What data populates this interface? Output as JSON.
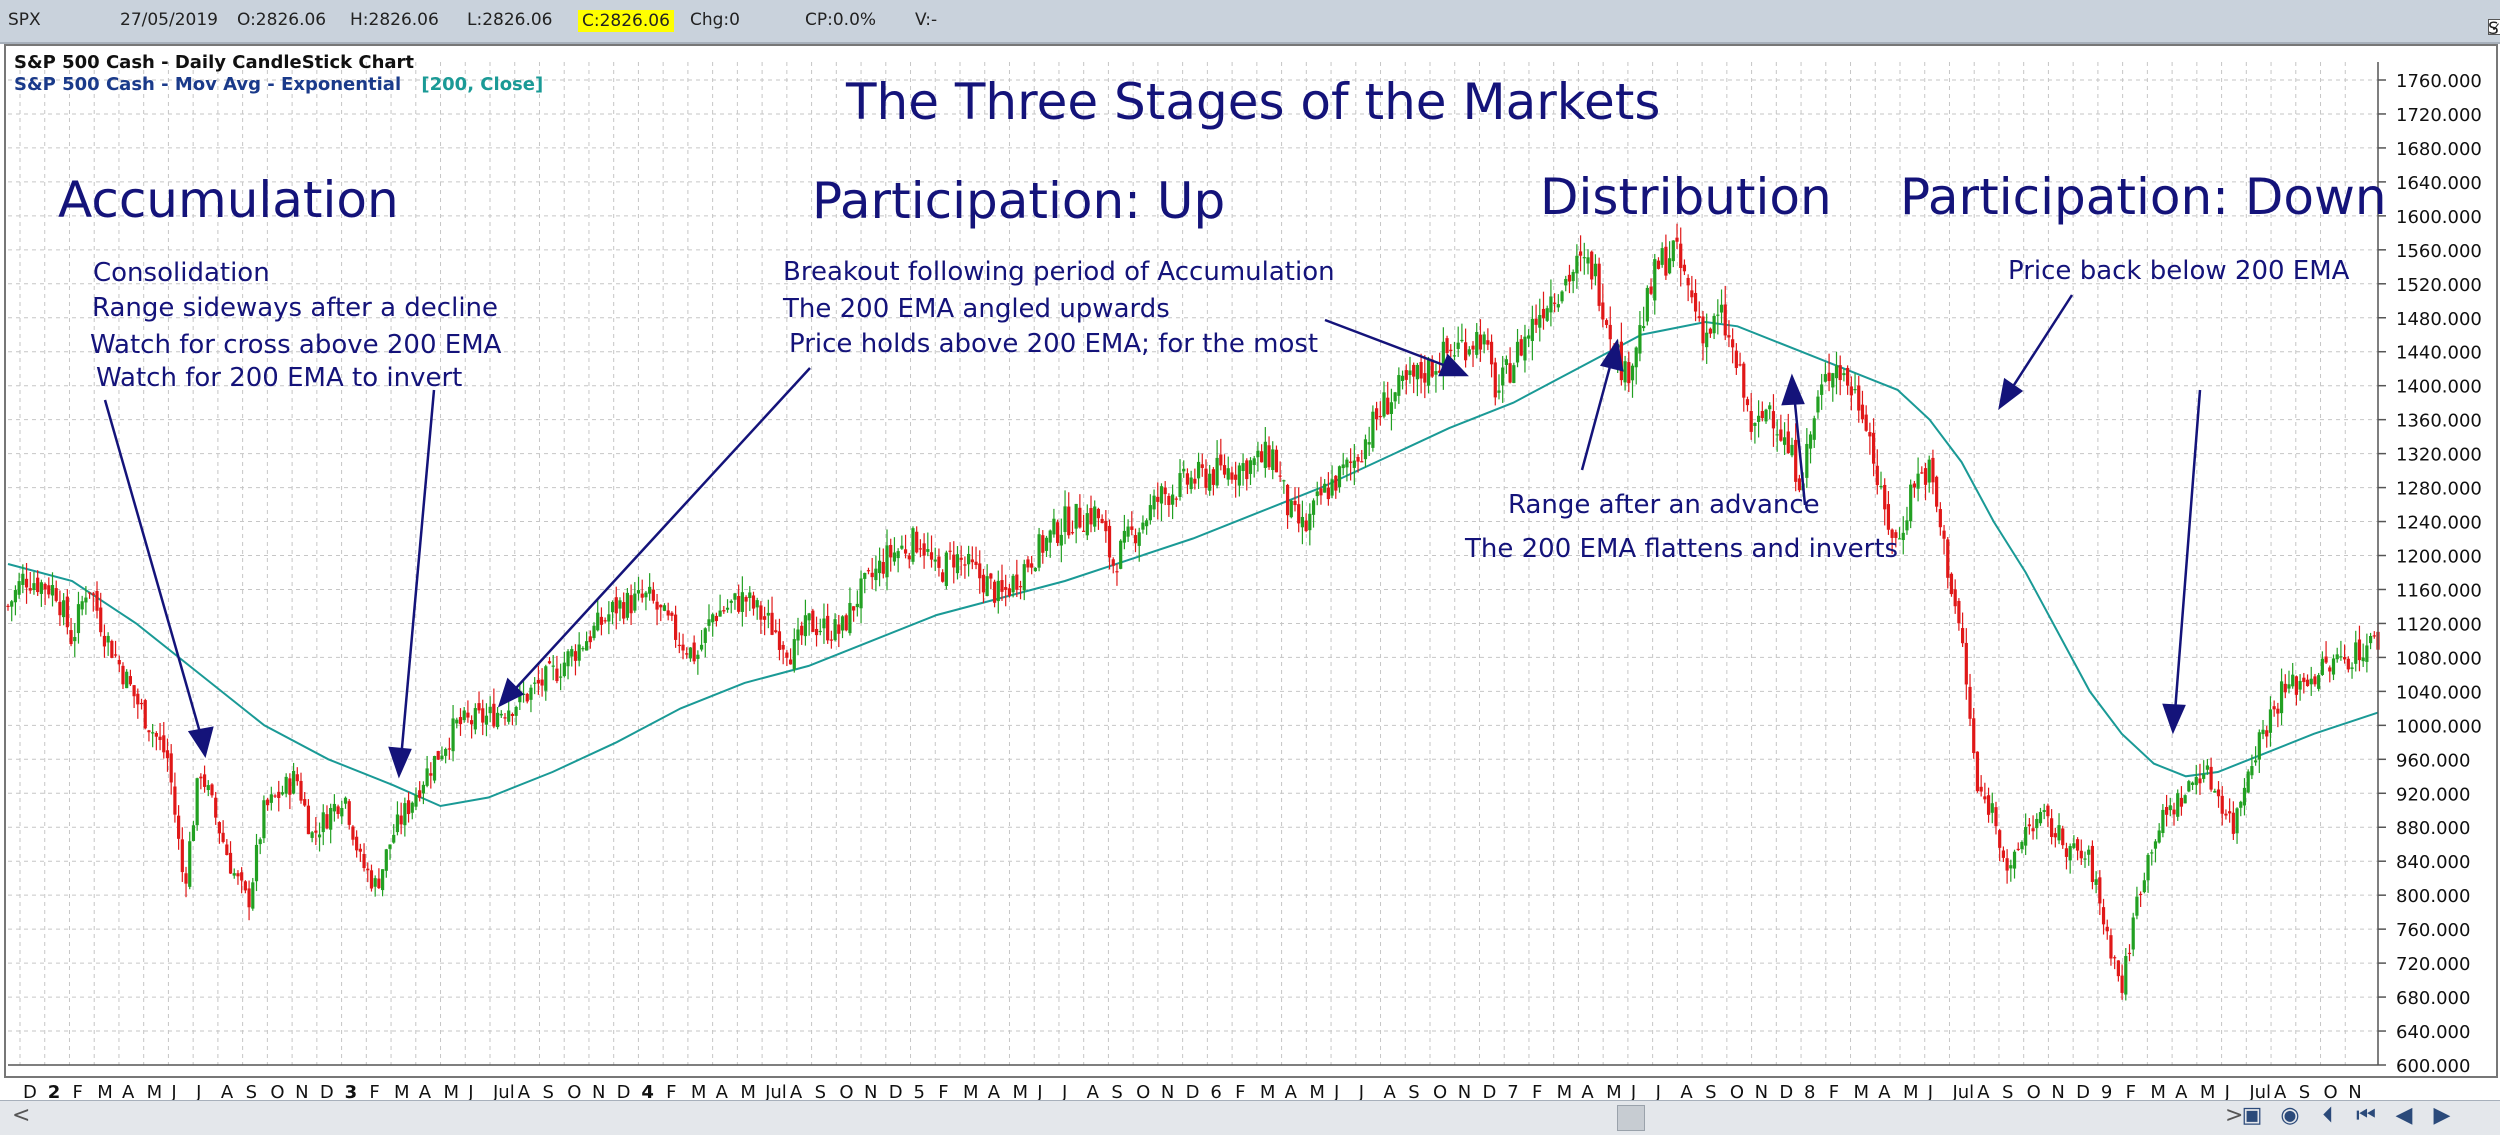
{
  "topbar": {
    "symbol": "SPX",
    "date": "27/05/2019",
    "open": "O:2826.06",
    "high": "H:2826.06",
    "low": "L:2826.06",
    "close": "C:2826.06",
    "change": "Chg:0",
    "cp": "CP:0.0%",
    "volume": "V:-",
    "show_last": "Show Last"
  },
  "header": {
    "line1": "S&P 500 Cash - Daily CandleStick Chart",
    "line2": "S&P 500 Cash - Mov Avg - Exponential",
    "line2_params": "[200, Close]"
  },
  "colors": {
    "up": "#22a022",
    "down": "#e01818",
    "ema": "#1a9a96",
    "annotation": "#14137a",
    "grid": "#c6c6c6"
  },
  "annotations": {
    "title": "The Three Stages of the Markets",
    "stage_accumulation": "Accumulation",
    "stage_participation_up": "Participation: Up",
    "stage_distribution": "Distribution",
    "stage_participation_down": "Participation: Down",
    "acc_note1": "Consolidation",
    "acc_note2": "Range sideways after a decline",
    "acc_note3": "Watch for cross above 200 EMA",
    "acc_note4": "Watch for 200 EMA to invert",
    "up_note1": "Breakout following period of Accumulation",
    "up_note2": "The 200 EMA angled upwards",
    "up_note3": "Price holds above 200 EMA; for the most",
    "dist_note1": "Range after an advance",
    "dist_note2": "The 200 EMA flattens and inverts",
    "down_note1": "Price back below 200 EMA"
  },
  "chart_data": {
    "type": "candlestick",
    "title": "S&P 500 Cash - Daily CandleStick Chart",
    "instrument": "S&P 500 Cash",
    "overlay": "Mov Avg - Exponential [200, Close]",
    "ylim": [
      600,
      1760
    ],
    "y_ticks": [
      "1760.000",
      "1720.000",
      "1680.000",
      "1640.000",
      "1600.000",
      "1560.000",
      "1520.000",
      "1480.000",
      "1440.000",
      "1400.000",
      "1360.000",
      "1320.000",
      "1280.000",
      "1240.000",
      "1200.000",
      "1160.000",
      "1120.000",
      "1080.000",
      "1040.000",
      "1000.000",
      "960.000",
      "920.000",
      "880.000",
      "840.000",
      "800.000",
      "760.000",
      "720.000",
      "680.000",
      "640.000",
      "600.000"
    ],
    "x_months": [
      "D",
      "2",
      "F",
      "M",
      "A",
      "M",
      "J",
      "J",
      "A",
      "S",
      "O",
      "N",
      "D",
      "3",
      "F",
      "M",
      "A",
      "M",
      "J",
      "Jul",
      "A",
      "S",
      "O",
      "N",
      "D",
      "4",
      "F",
      "M",
      "A",
      "M",
      "Jul",
      "A",
      "S",
      "O",
      "N",
      "D",
      "5",
      "F",
      "M",
      "A",
      "M",
      "J",
      "J",
      "A",
      "S",
      "O",
      "N",
      "D",
      "6",
      "F",
      "M",
      "A",
      "M",
      "J",
      "J",
      "A",
      "S",
      "O",
      "N",
      "D",
      "7",
      "F",
      "M",
      "A",
      "M",
      "J",
      "J",
      "A",
      "S",
      "O",
      "N",
      "D",
      "8",
      "F",
      "M",
      "A",
      "M",
      "J",
      "Jul",
      "A",
      "S",
      "O",
      "N",
      "D",
      "9",
      "F",
      "M",
      "A",
      "M",
      "J",
      "Jul",
      "A",
      "S",
      "O",
      "N"
    ],
    "year_markers": [
      "2",
      "3",
      "4",
      "5",
      "6",
      "7",
      "8",
      "9"
    ],
    "price_path": [
      [
        0,
        1140
      ],
      [
        1,
        1175
      ],
      [
        3,
        1160
      ],
      [
        4,
        1100
      ],
      [
        5,
        1170
      ],
      [
        6,
        1110
      ],
      [
        8,
        1030
      ],
      [
        10,
        960
      ],
      [
        11,
        810
      ],
      [
        12,
        950
      ],
      [
        13,
        890
      ],
      [
        14,
        830
      ],
      [
        15,
        790
      ],
      [
        16,
        900
      ],
      [
        18,
        940
      ],
      [
        19,
        870
      ],
      [
        21,
        920
      ],
      [
        22,
        840
      ],
      [
        23,
        810
      ],
      [
        24,
        870
      ],
      [
        26,
        940
      ],
      [
        28,
        1000
      ],
      [
        30,
        1010
      ],
      [
        32,
        1030
      ],
      [
        34,
        1060
      ],
      [
        36,
        1100
      ],
      [
        38,
        1140
      ],
      [
        40,
        1150
      ],
      [
        42,
        1100
      ],
      [
        43,
        1080
      ],
      [
        44,
        1130
      ],
      [
        46,
        1150
      ],
      [
        48,
        1110
      ],
      [
        49,
        1085
      ],
      [
        50,
        1120
      ],
      [
        52,
        1110
      ],
      [
        53,
        1150
      ],
      [
        55,
        1200
      ],
      [
        57,
        1220
      ],
      [
        58,
        1175
      ],
      [
        59,
        1200
      ],
      [
        61,
        1170
      ],
      [
        62,
        1150
      ],
      [
        64,
        1200
      ],
      [
        66,
        1240
      ],
      [
        68,
        1250
      ],
      [
        69,
        1190
      ],
      [
        70,
        1220
      ],
      [
        72,
        1270
      ],
      [
        74,
        1290
      ],
      [
        76,
        1300
      ],
      [
        78,
        1310
      ],
      [
        79,
        1320
      ],
      [
        80,
        1250
      ],
      [
        81,
        1230
      ],
      [
        82,
        1270
      ],
      [
        84,
        1310
      ],
      [
        86,
        1380
      ],
      [
        88,
        1410
      ],
      [
        90,
        1440
      ],
      [
        92,
        1460
      ],
      [
        93,
        1390
      ],
      [
        94,
        1430
      ],
      [
        96,
        1500
      ],
      [
        98,
        1540
      ],
      [
        99,
        1540
      ],
      [
        100,
        1470
      ],
      [
        101,
        1410
      ],
      [
        102,
        1470
      ],
      [
        103,
        1540
      ],
      [
        104,
        1560
      ],
      [
        105,
        1510
      ],
      [
        106,
        1460
      ],
      [
        107,
        1480
      ],
      [
        108,
        1420
      ],
      [
        109,
        1340
      ],
      [
        110,
        1380
      ],
      [
        111,
        1330
      ],
      [
        112,
        1290
      ],
      [
        113,
        1380
      ],
      [
        114,
        1430
      ],
      [
        116,
        1370
      ],
      [
        117,
        1260
      ],
      [
        118,
        1210
      ],
      [
        119,
        1290
      ],
      [
        120,
        1300
      ],
      [
        121,
        1200
      ],
      [
        122,
        1100
      ],
      [
        123,
        920
      ],
      [
        124,
        900
      ],
      [
        125,
        820
      ],
      [
        126,
        880
      ],
      [
        127,
        890
      ],
      [
        128,
        870
      ],
      [
        129,
        850
      ],
      [
        130,
        840
      ],
      [
        131,
        760
      ],
      [
        132,
        690
      ],
      [
        133,
        800
      ],
      [
        134,
        870
      ],
      [
        135,
        900
      ],
      [
        136,
        920
      ],
      [
        137,
        950
      ],
      [
        138,
        920
      ],
      [
        139,
        880
      ],
      [
        140,
        960
      ],
      [
        142,
        1040
      ],
      [
        144,
        1060
      ],
      [
        146,
        1080
      ],
      [
        147,
        1090
      ],
      [
        148,
        1100
      ]
    ],
    "ema_path": [
      [
        0,
        1190
      ],
      [
        4,
        1170
      ],
      [
        8,
        1120
      ],
      [
        12,
        1060
      ],
      [
        16,
        1000
      ],
      [
        20,
        960
      ],
      [
        24,
        930
      ],
      [
        27,
        905
      ],
      [
        30,
        915
      ],
      [
        34,
        945
      ],
      [
        38,
        980
      ],
      [
        42,
        1020
      ],
      [
        46,
        1050
      ],
      [
        50,
        1070
      ],
      [
        54,
        1100
      ],
      [
        58,
        1130
      ],
      [
        62,
        1150
      ],
      [
        66,
        1170
      ],
      [
        70,
        1195
      ],
      [
        74,
        1220
      ],
      [
        78,
        1250
      ],
      [
        82,
        1280
      ],
      [
        86,
        1315
      ],
      [
        90,
        1350
      ],
      [
        94,
        1380
      ],
      [
        98,
        1420
      ],
      [
        102,
        1460
      ],
      [
        106,
        1475
      ],
      [
        108,
        1470
      ],
      [
        112,
        1440
      ],
      [
        116,
        1410
      ],
      [
        118,
        1395
      ],
      [
        120,
        1360
      ],
      [
        122,
        1310
      ],
      [
        124,
        1240
      ],
      [
        126,
        1180
      ],
      [
        128,
        1110
      ],
      [
        130,
        1040
      ],
      [
        132,
        990
      ],
      [
        134,
        955
      ],
      [
        136,
        940
      ],
      [
        138,
        945
      ],
      [
        140,
        960
      ],
      [
        144,
        990
      ],
      [
        148,
        1015
      ]
    ]
  },
  "bottombar": {
    "left_arrow": "<",
    "right_arrow": ">"
  }
}
